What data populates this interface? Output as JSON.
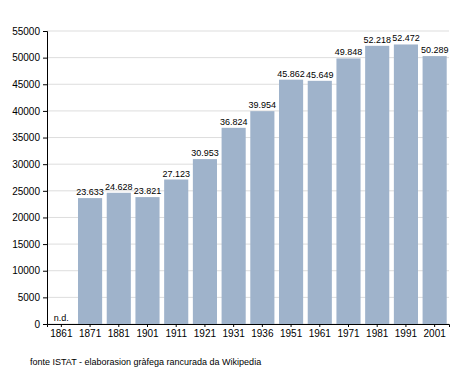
{
  "chart_data": {
    "type": "bar",
    "categories": [
      "1861",
      "1871",
      "1881",
      "1901",
      "1911",
      "1921",
      "1931",
      "1936",
      "1951",
      "1961",
      "1971",
      "1981",
      "1991",
      "2001"
    ],
    "values": [
      null,
      23633,
      24628,
      23821,
      27123,
      30953,
      36824,
      39954,
      45862,
      45649,
      49848,
      52218,
      52472,
      50289
    ],
    "value_labels": [
      "n.d.",
      "23.633",
      "24.628",
      "23.821",
      "27.123",
      "30.953",
      "36.824",
      "39.954",
      "45.862",
      "45.649",
      "49.848",
      "52.218",
      "52.472",
      "50.289"
    ],
    "data_labels": true,
    "color": "#9fb3cb",
    "ylim": [
      0,
      55000
    ],
    "yticks": [
      0,
      5000,
      10000,
      15000,
      20000,
      25000,
      30000,
      35000,
      40000,
      45000,
      50000,
      55000
    ],
    "grid": true,
    "annotation": "fonte ISTAT - elaborasion gràfega rancurada da Wikipedia"
  }
}
